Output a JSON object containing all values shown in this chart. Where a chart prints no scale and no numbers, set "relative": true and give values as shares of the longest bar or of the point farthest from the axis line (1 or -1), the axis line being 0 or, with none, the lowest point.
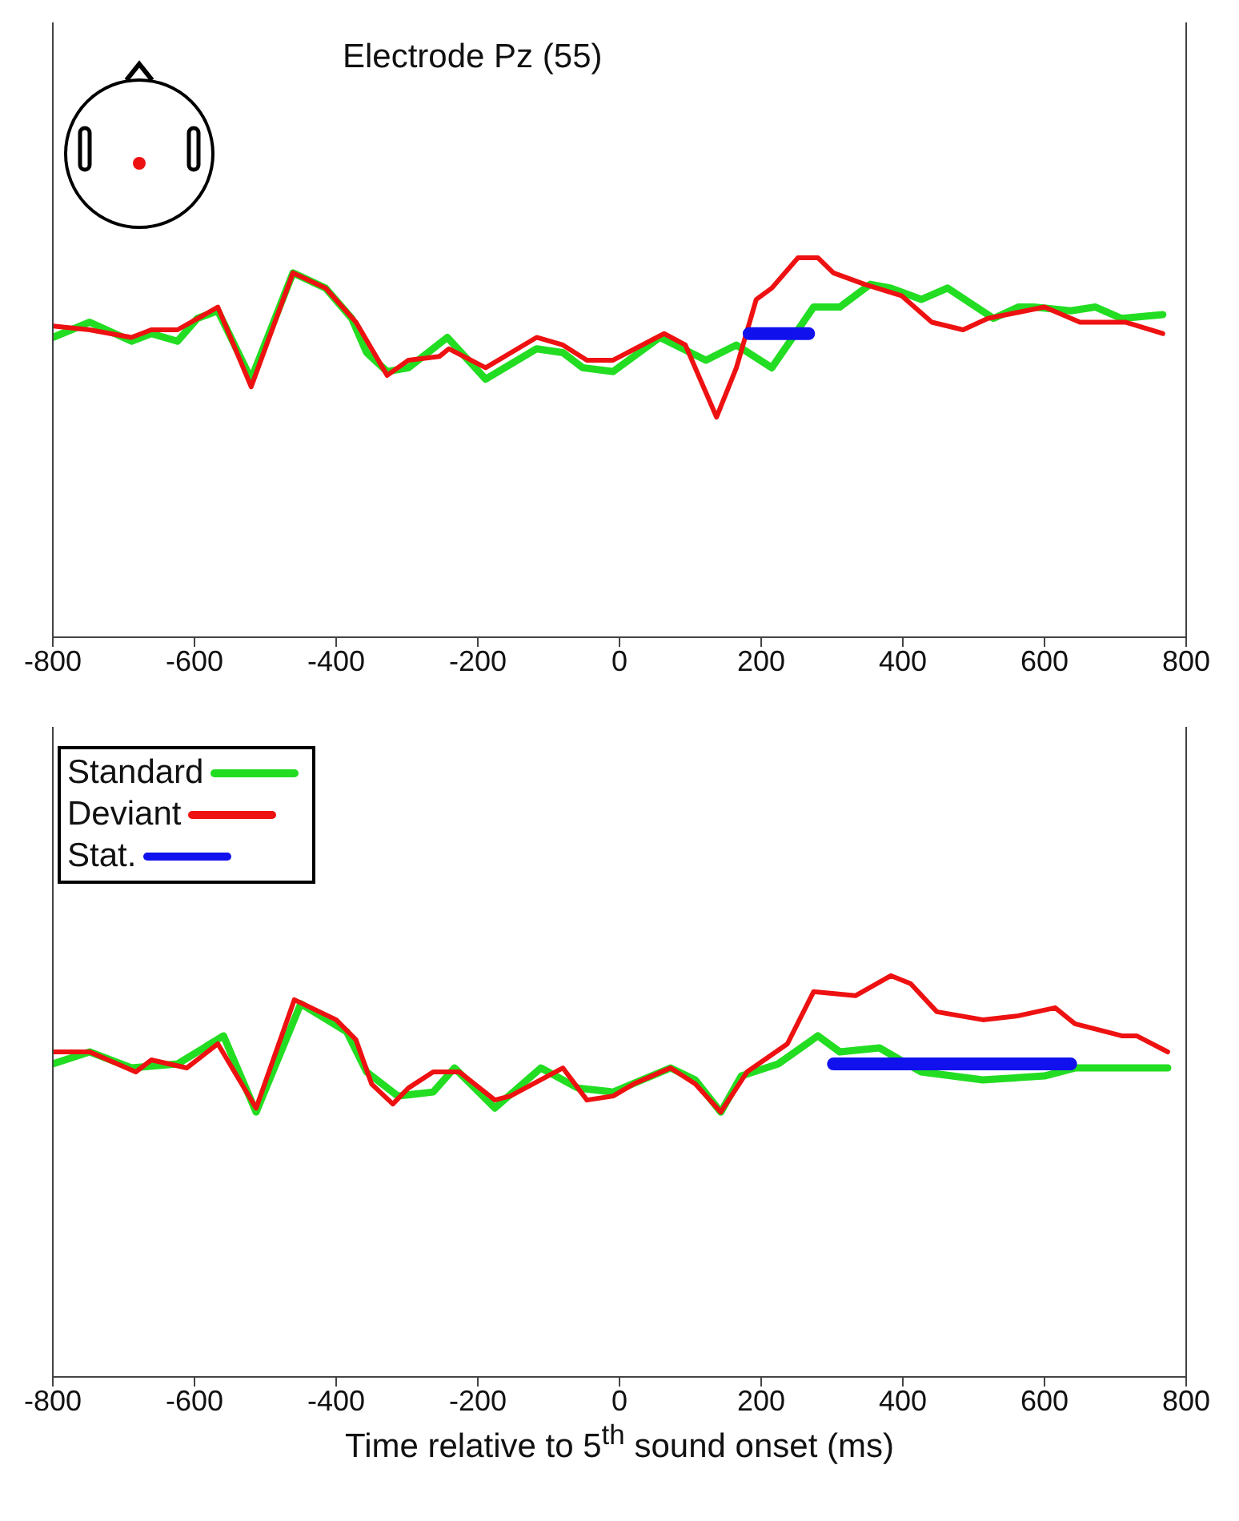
{
  "chart_data": [
    {
      "type": "line",
      "title": "Electrode Pz (55)",
      "relative": true,
      "xlim": [
        -800,
        800
      ],
      "xticks": [
        -800,
        -600,
        -400,
        -200,
        0,
        200,
        400,
        600,
        800
      ],
      "legend": false,
      "series": [
        {
          "color": "#22dd22",
          "x": [
            -800,
            -748,
            -689,
            -661,
            -624,
            -596,
            -567,
            -520,
            -461,
            -415,
            -378,
            -357,
            -328,
            -298,
            -243,
            -189,
            -117,
            -80,
            -52,
            -9,
            57,
            122,
            165,
            215,
            252,
            274,
            311,
            354,
            383,
            426,
            463,
            528,
            563,
            585,
            637,
            672,
            709,
            767
          ],
          "values": [
            0.79,
            0.83,
            0.78,
            0.8,
            0.78,
            0.84,
            0.86,
            0.68,
            0.96,
            0.92,
            0.84,
            0.75,
            0.7,
            0.71,
            0.79,
            0.68,
            0.76,
            0.75,
            0.71,
            0.7,
            0.79,
            0.73,
            0.77,
            0.71,
            0.81,
            0.87,
            0.87,
            0.93,
            0.92,
            0.89,
            0.92,
            0.84,
            0.87,
            0.87,
            0.86,
            0.87,
            0.84,
            0.85
          ]
        },
        {
          "color": "#ee1111",
          "x": [
            -800,
            -748,
            -689,
            -661,
            -624,
            -567,
            -520,
            -461,
            -415,
            -372,
            -328,
            -298,
            -254,
            -241,
            -189,
            -117,
            -80,
            -46,
            -9,
            63,
            93,
            137,
            165,
            193,
            215,
            252,
            280,
            302,
            346,
            398,
            441,
            485,
            520,
            600,
            650,
            715,
            767
          ],
          "values": [
            0.82,
            0.81,
            0.79,
            0.81,
            0.81,
            0.87,
            0.66,
            0.96,
            0.92,
            0.83,
            0.69,
            0.73,
            0.74,
            0.76,
            0.71,
            0.79,
            0.77,
            0.73,
            0.73,
            0.8,
            0.77,
            0.58,
            0.71,
            0.89,
            0.92,
            1.0,
            1.0,
            0.96,
            0.93,
            0.9,
            0.83,
            0.81,
            0.84,
            0.87,
            0.83,
            0.83,
            0.8
          ]
        },
        {
          "color": "#1111ee",
          "x": [
            183,
            267
          ],
          "values": [
            0.8,
            0.8
          ]
        }
      ]
    },
    {
      "type": "line",
      "xlabel": "Time relative to 5$^{th}$ sound onset (ms)",
      "relative": true,
      "xlim": [
        -800,
        800
      ],
      "xticks": [
        -800,
        -600,
        -400,
        -200,
        0,
        200,
        400,
        600,
        800
      ],
      "legend": "top left",
      "series": [
        {
          "name": "Standard",
          "color": "#22dd22",
          "x": [
            -800,
            -748,
            -689,
            -624,
            -559,
            -513,
            -450,
            -385,
            -357,
            -313,
            -263,
            -233,
            -176,
            -111,
            -59,
            -9,
            72,
            107,
            143,
            172,
            224,
            280,
            311,
            367,
            426,
            513,
            600,
            643,
            715,
            774
          ],
          "values": [
            0.78,
            0.81,
            0.77,
            0.78,
            0.85,
            0.66,
            0.93,
            0.86,
            0.76,
            0.7,
            0.71,
            0.77,
            0.67,
            0.77,
            0.72,
            0.71,
            0.77,
            0.74,
            0.66,
            0.75,
            0.78,
            0.85,
            0.81,
            0.82,
            0.76,
            0.74,
            0.75,
            0.77,
            0.77,
            0.77
          ]
        },
        {
          "name": "Deviant",
          "color": "#ee1111",
          "x": [
            -800,
            -748,
            -683,
            -661,
            -611,
            -567,
            -513,
            -459,
            -400,
            -372,
            -350,
            -320,
            -298,
            -263,
            -226,
            -176,
            -154,
            -80,
            -46,
            -9,
            20,
            72,
            107,
            143,
            180,
            237,
            274,
            333,
            383,
            411,
            448,
            513,
            563,
            615,
            643,
            709,
            730,
            774
          ],
          "values": [
            0.81,
            0.81,
            0.76,
            0.79,
            0.77,
            0.83,
            0.67,
            0.94,
            0.89,
            0.84,
            0.73,
            0.68,
            0.72,
            0.76,
            0.76,
            0.69,
            0.7,
            0.77,
            0.69,
            0.7,
            0.73,
            0.77,
            0.73,
            0.66,
            0.76,
            0.83,
            0.96,
            0.95,
            1.0,
            0.98,
            0.91,
            0.89,
            0.9,
            0.92,
            0.88,
            0.85,
            0.85,
            0.81
          ]
        },
        {
          "name": "Stat.",
          "color": "#1111ee",
          "x": [
            302,
            637
          ],
          "values": [
            0.78,
            0.78
          ]
        }
      ]
    }
  ]
}
